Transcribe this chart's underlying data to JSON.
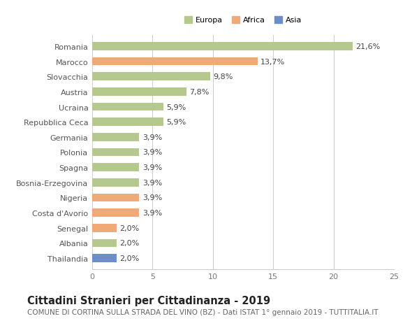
{
  "categories": [
    "Romania",
    "Marocco",
    "Slovacchia",
    "Austria",
    "Ucraina",
    "Repubblica Ceca",
    "Germania",
    "Polonia",
    "Spagna",
    "Bosnia-Erzegovina",
    "Nigeria",
    "Costa d'Avorio",
    "Senegal",
    "Albania",
    "Thailandia"
  ],
  "values": [
    21.6,
    13.7,
    9.8,
    7.8,
    5.9,
    5.9,
    3.9,
    3.9,
    3.9,
    3.9,
    3.9,
    3.9,
    2.0,
    2.0,
    2.0
  ],
  "labels": [
    "21,6%",
    "13,7%",
    "9,8%",
    "7,8%",
    "5,9%",
    "5,9%",
    "3,9%",
    "3,9%",
    "3,9%",
    "3,9%",
    "3,9%",
    "3,9%",
    "2,0%",
    "2,0%",
    "2,0%"
  ],
  "continents": [
    "Europa",
    "Africa",
    "Europa",
    "Europa",
    "Europa",
    "Europa",
    "Europa",
    "Europa",
    "Europa",
    "Europa",
    "Africa",
    "Africa",
    "Africa",
    "Europa",
    "Asia"
  ],
  "colors": {
    "Europa": "#b5c98e",
    "Africa": "#f0aa78",
    "Asia": "#6b8ec9"
  },
  "legend_labels": [
    "Europa",
    "Africa",
    "Asia"
  ],
  "legend_colors": [
    "#b5c98e",
    "#f0aa78",
    "#6b8ec9"
  ],
  "xlim": [
    0,
    25
  ],
  "xticks": [
    0,
    5,
    10,
    15,
    20,
    25
  ],
  "title": "Cittadini Stranieri per Cittadinanza - 2019",
  "subtitle": "COMUNE DI CORTINA SULLA STRADA DEL VINO (BZ) - Dati ISTAT 1° gennaio 2019 - TUTTITALIA.IT",
  "bg_color": "#ffffff",
  "grid_color": "#cccccc",
  "bar_height": 0.55,
  "label_fontsize": 8.0,
  "tick_fontsize": 8.0,
  "title_fontsize": 10.5,
  "subtitle_fontsize": 7.5
}
